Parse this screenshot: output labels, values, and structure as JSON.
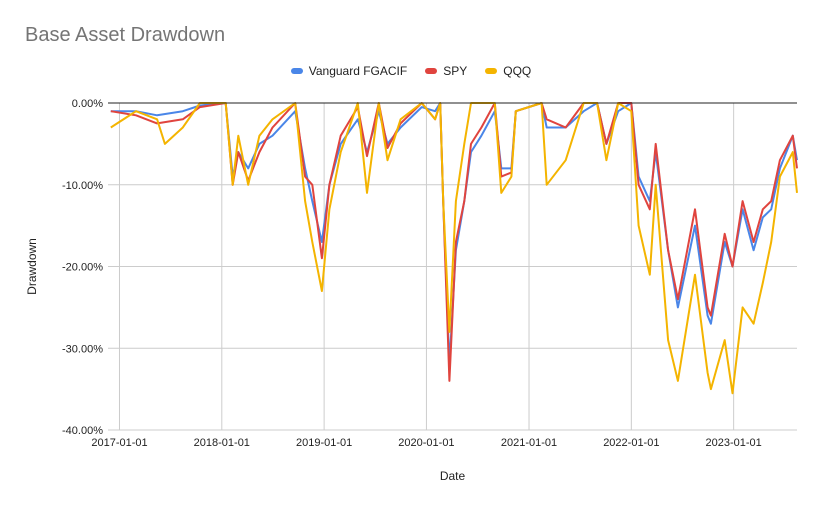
{
  "chart_data": {
    "type": "line",
    "title": "Base Asset Drawdown",
    "xlabel": "Date",
    "ylabel": "Drawdown",
    "x_range": [
      "2016-11-21",
      "2023-08-15"
    ],
    "ylim": [
      -40,
      0
    ],
    "x_ticks": [
      "2017-01-01",
      "2018-01-01",
      "2019-01-01",
      "2020-01-01",
      "2021-01-01",
      "2022-01-01",
      "2023-01-01"
    ],
    "y_ticks": [
      {
        "value": 0,
        "label": "0.00%"
      },
      {
        "value": -10,
        "label": "-10.00%"
      },
      {
        "value": -20,
        "label": "-20.00%"
      },
      {
        "value": -30,
        "label": "-30.00%"
      },
      {
        "value": -40,
        "label": "-40.00%"
      }
    ],
    "grid": true,
    "legend_position": "top-center",
    "series": [
      {
        "name": "Vanguard FGACIF",
        "color": "#4a86e8",
        "points": [
          [
            "2016-12-01",
            -1.0
          ],
          [
            "2017-03-01",
            -1.0
          ],
          [
            "2017-05-15",
            -1.5
          ],
          [
            "2017-08-15",
            -1.0
          ],
          [
            "2017-10-15",
            -0.3
          ],
          [
            "2018-01-15",
            0.0
          ],
          [
            "2018-02-09",
            -9.0
          ],
          [
            "2018-03-01",
            -6.0
          ],
          [
            "2018-04-05",
            -8.0
          ],
          [
            "2018-05-15",
            -5.0
          ],
          [
            "2018-07-01",
            -4.0
          ],
          [
            "2018-09-20",
            -1.0
          ],
          [
            "2018-10-25",
            -8.0
          ],
          [
            "2018-11-20",
            -12.0
          ],
          [
            "2018-12-24",
            -17.0
          ],
          [
            "2019-01-20",
            -10.0
          ],
          [
            "2019-03-01",
            -5.0
          ],
          [
            "2019-05-01",
            -2.0
          ],
          [
            "2019-06-03",
            -6.0
          ],
          [
            "2019-07-15",
            -1.0
          ],
          [
            "2019-08-15",
            -5.0
          ],
          [
            "2019-10-01",
            -3.0
          ],
          [
            "2019-12-15",
            -0.5
          ],
          [
            "2020-02-01",
            -1.0
          ],
          [
            "2020-02-19",
            0.0
          ],
          [
            "2020-03-01",
            -12.0
          ],
          [
            "2020-03-23",
            -32.0
          ],
          [
            "2020-04-15",
            -18.0
          ],
          [
            "2020-05-15",
            -12.0
          ],
          [
            "2020-06-08",
            -6.0
          ],
          [
            "2020-07-15",
            -4.0
          ],
          [
            "2020-09-01",
            -1.0
          ],
          [
            "2020-09-24",
            -8.0
          ],
          [
            "2020-10-30",
            -8.0
          ],
          [
            "2020-11-15",
            -1.0
          ],
          [
            "2021-02-15",
            0.0
          ],
          [
            "2021-03-05",
            -3.0
          ],
          [
            "2021-05-12",
            -3.0
          ],
          [
            "2021-07-15",
            -1.0
          ],
          [
            "2021-09-01",
            0.0
          ],
          [
            "2021-10-04",
            -5.0
          ],
          [
            "2021-11-15",
            -1.0
          ],
          [
            "2022-01-01",
            0.0
          ],
          [
            "2022-01-27",
            -9.0
          ],
          [
            "2022-03-08",
            -12.0
          ],
          [
            "2022-03-29",
            -6.0
          ],
          [
            "2022-05-12",
            -18.0
          ],
          [
            "2022-06-16",
            -25.0
          ],
          [
            "2022-08-16",
            -15.0
          ],
          [
            "2022-09-30",
            -26.0
          ],
          [
            "2022-10-12",
            -27.0
          ],
          [
            "2022-11-30",
            -17.0
          ],
          [
            "2022-12-28",
            -20.0
          ],
          [
            "2023-02-02",
            -13.0
          ],
          [
            "2023-03-13",
            -18.0
          ],
          [
            "2023-04-15",
            -14.0
          ],
          [
            "2023-05-15",
            -13.0
          ],
          [
            "2023-06-15",
            -8.0
          ],
          [
            "2023-07-31",
            -4.0
          ],
          [
            "2023-08-15",
            -7.0
          ]
        ]
      },
      {
        "name": "SPY",
        "color": "#e0443e",
        "points": [
          [
            "2016-12-01",
            -1.0
          ],
          [
            "2017-03-01",
            -1.5
          ],
          [
            "2017-05-15",
            -2.5
          ],
          [
            "2017-08-15",
            -2.0
          ],
          [
            "2017-10-15",
            -0.5
          ],
          [
            "2018-01-15",
            0.0
          ],
          [
            "2018-02-09",
            -10.0
          ],
          [
            "2018-03-01",
            -6.0
          ],
          [
            "2018-04-05",
            -9.5
          ],
          [
            "2018-05-15",
            -6.0
          ],
          [
            "2018-07-01",
            -3.0
          ],
          [
            "2018-09-20",
            0.0
          ],
          [
            "2018-10-25",
            -9.0
          ],
          [
            "2018-11-20",
            -10.0
          ],
          [
            "2018-12-24",
            -19.0
          ],
          [
            "2019-01-20",
            -10.0
          ],
          [
            "2019-03-01",
            -4.0
          ],
          [
            "2019-05-01",
            -0.5
          ],
          [
            "2019-06-03",
            -6.5
          ],
          [
            "2019-07-15",
            0.0
          ],
          [
            "2019-08-15",
            -5.5
          ],
          [
            "2019-10-01",
            -2.5
          ],
          [
            "2019-12-15",
            0.0
          ],
          [
            "2020-02-01",
            -2.0
          ],
          [
            "2020-02-19",
            0.0
          ],
          [
            "2020-03-01",
            -12.0
          ],
          [
            "2020-03-23",
            -34.0
          ],
          [
            "2020-04-15",
            -17.0
          ],
          [
            "2020-05-15",
            -12.0
          ],
          [
            "2020-06-08",
            -5.0
          ],
          [
            "2020-07-15",
            -3.0
          ],
          [
            "2020-09-01",
            0.0
          ],
          [
            "2020-09-24",
            -9.0
          ],
          [
            "2020-10-30",
            -8.5
          ],
          [
            "2020-11-15",
            -1.0
          ],
          [
            "2021-02-15",
            0.0
          ],
          [
            "2021-03-05",
            -2.0
          ],
          [
            "2021-05-12",
            -3.0
          ],
          [
            "2021-07-15",
            0.0
          ],
          [
            "2021-09-01",
            0.0
          ],
          [
            "2021-10-04",
            -5.0
          ],
          [
            "2021-11-15",
            0.0
          ],
          [
            "2022-01-01",
            0.0
          ],
          [
            "2022-01-27",
            -10.0
          ],
          [
            "2022-03-08",
            -13.0
          ],
          [
            "2022-03-29",
            -5.0
          ],
          [
            "2022-05-12",
            -18.0
          ],
          [
            "2022-06-16",
            -24.0
          ],
          [
            "2022-08-16",
            -13.0
          ],
          [
            "2022-09-30",
            -25.0
          ],
          [
            "2022-10-12",
            -26.0
          ],
          [
            "2022-11-30",
            -16.0
          ],
          [
            "2022-12-28",
            -20.0
          ],
          [
            "2023-02-02",
            -12.0
          ],
          [
            "2023-03-13",
            -17.0
          ],
          [
            "2023-04-15",
            -13.0
          ],
          [
            "2023-05-15",
            -12.0
          ],
          [
            "2023-06-15",
            -7.0
          ],
          [
            "2023-07-31",
            -4.0
          ],
          [
            "2023-08-15",
            -8.0
          ]
        ]
      },
      {
        "name": "QQQ",
        "color": "#f4b400",
        "points": [
          [
            "2016-12-01",
            -3.0
          ],
          [
            "2017-03-01",
            -1.0
          ],
          [
            "2017-05-15",
            -2.0
          ],
          [
            "2017-06-12",
            -5.0
          ],
          [
            "2017-08-15",
            -3.0
          ],
          [
            "2017-10-15",
            0.0
          ],
          [
            "2018-01-15",
            0.0
          ],
          [
            "2018-02-09",
            -10.0
          ],
          [
            "2018-03-01",
            -4.0
          ],
          [
            "2018-04-05",
            -10.0
          ],
          [
            "2018-05-15",
            -4.0
          ],
          [
            "2018-07-01",
            -2.0
          ],
          [
            "2018-09-20",
            0.0
          ],
          [
            "2018-10-25",
            -12.0
          ],
          [
            "2018-11-20",
            -17.0
          ],
          [
            "2018-12-24",
            -23.0
          ],
          [
            "2019-01-20",
            -13.0
          ],
          [
            "2019-03-01",
            -6.0
          ],
          [
            "2019-05-01",
            0.0
          ],
          [
            "2019-06-03",
            -11.0
          ],
          [
            "2019-07-15",
            0.0
          ],
          [
            "2019-08-15",
            -7.0
          ],
          [
            "2019-10-01",
            -2.0
          ],
          [
            "2019-12-15",
            0.0
          ],
          [
            "2020-02-01",
            -2.0
          ],
          [
            "2020-02-19",
            0.0
          ],
          [
            "2020-03-01",
            -12.0
          ],
          [
            "2020-03-23",
            -28.0
          ],
          [
            "2020-04-15",
            -12.0
          ],
          [
            "2020-05-15",
            -5.0
          ],
          [
            "2020-06-08",
            0.0
          ],
          [
            "2020-07-15",
            0.0
          ],
          [
            "2020-09-01",
            0.0
          ],
          [
            "2020-09-24",
            -11.0
          ],
          [
            "2020-10-30",
            -9.0
          ],
          [
            "2020-11-15",
            -1.0
          ],
          [
            "2021-02-15",
            0.0
          ],
          [
            "2021-03-05",
            -10.0
          ],
          [
            "2021-05-12",
            -7.0
          ],
          [
            "2021-07-15",
            0.0
          ],
          [
            "2021-09-01",
            0.0
          ],
          [
            "2021-10-04",
            -7.0
          ],
          [
            "2021-11-15",
            0.0
          ],
          [
            "2022-01-01",
            -1.0
          ],
          [
            "2022-01-27",
            -15.0
          ],
          [
            "2022-03-08",
            -21.0
          ],
          [
            "2022-03-29",
            -10.0
          ],
          [
            "2022-05-12",
            -29.0
          ],
          [
            "2022-06-16",
            -34.0
          ],
          [
            "2022-08-16",
            -21.0
          ],
          [
            "2022-09-30",
            -33.0
          ],
          [
            "2022-10-12",
            -35.0
          ],
          [
            "2022-11-30",
            -29.0
          ],
          [
            "2022-12-28",
            -35.5
          ],
          [
            "2023-02-02",
            -25.0
          ],
          [
            "2023-03-13",
            -27.0
          ],
          [
            "2023-04-15",
            -22.0
          ],
          [
            "2023-05-15",
            -17.0
          ],
          [
            "2023-06-15",
            -9.0
          ],
          [
            "2023-07-31",
            -6.0
          ],
          [
            "2023-08-15",
            -11.0
          ]
        ]
      }
    ]
  }
}
